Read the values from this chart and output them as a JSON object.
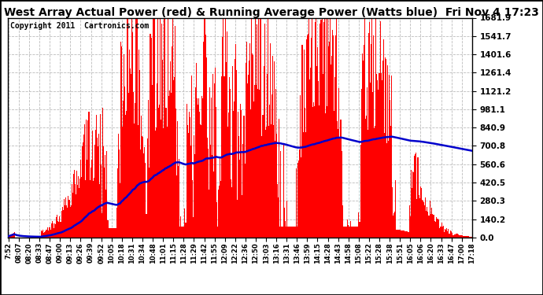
{
  "title": "West Array Actual Power (red) & Running Average Power (Watts blue)  Fri Nov 4 17:23",
  "copyright": "Copyright 2011  Cartronics.com",
  "yticks": [
    0.0,
    140.2,
    280.3,
    420.5,
    560.6,
    700.8,
    840.9,
    981.1,
    1121.2,
    1261.4,
    1401.6,
    1541.7,
    1681.9
  ],
  "ymax": 1681.9,
  "ymin": 0.0,
  "bar_color": "#FF0000",
  "line_color": "#0000CC",
  "bg_color": "#FFFFFF",
  "grid_color": "#BBBBBB",
  "title_fontsize": 10,
  "copyright_fontsize": 7,
  "xtick_labels": [
    "7:52",
    "08:07",
    "08:20",
    "08:33",
    "08:47",
    "09:00",
    "09:13",
    "09:26",
    "09:39",
    "09:52",
    "10:05",
    "10:18",
    "10:31",
    "10:34",
    "10:48",
    "11:01",
    "11:15",
    "11:28",
    "11:29",
    "11:42",
    "11:55",
    "12:09",
    "12:22",
    "12:36",
    "12:50",
    "13:03",
    "13:16",
    "13:31",
    "13:46",
    "13:59",
    "14:15",
    "14:28",
    "14:43",
    "14:58",
    "15:08",
    "15:22",
    "15:28",
    "15:38",
    "15:51",
    "16:05",
    "16:06",
    "16:20",
    "16:33",
    "16:47",
    "17:00",
    "17:18"
  ]
}
